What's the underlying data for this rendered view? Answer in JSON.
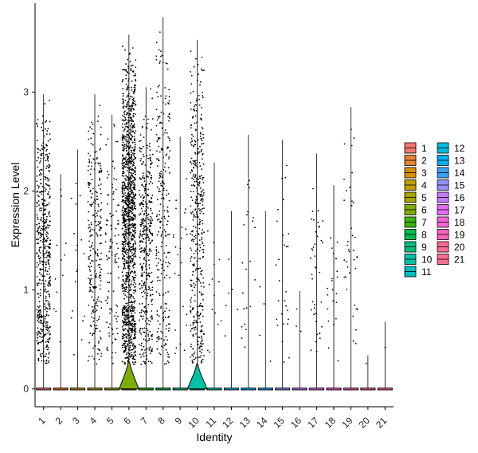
{
  "chart_data": {
    "type": "violin",
    "xlabel": "Identity",
    "ylabel": "Expression Level",
    "categories": [
      "1",
      "2",
      "3",
      "4",
      "5",
      "6",
      "7",
      "8",
      "9",
      "10",
      "11",
      "12",
      "13",
      "14",
      "15",
      "16",
      "17",
      "18",
      "19",
      "20",
      "21"
    ],
    "ylim": [
      -0.18,
      3.9
    ],
    "yticks": [
      0,
      1,
      2,
      3
    ],
    "violin_max": [
      2.98,
      2.17,
      2.42,
      2.98,
      2.77,
      3.58,
      3.05,
      3.76,
      2.55,
      3.53,
      2.29,
      1.8,
      2.57,
      1.8,
      2.52,
      0.99,
      2.38,
      2.06,
      2.85,
      0.34,
      0.68
    ],
    "scatter_points_approx": [
      520,
      12,
      18,
      260,
      110,
      1350,
      420,
      260,
      25,
      420,
      14,
      6,
      22,
      4,
      28,
      3,
      40,
      22,
      38,
      1,
      1
    ],
    "legend": {
      "placement": "right",
      "columns": [
        [
          "1",
          "2",
          "3",
          "4",
          "5",
          "6",
          "7",
          "8",
          "9",
          "10",
          "11"
        ],
        [
          "12",
          "13",
          "14",
          "15",
          "16",
          "17",
          "18",
          "19",
          "20",
          "21"
        ]
      ]
    },
    "colors": [
      "#F8766D",
      "#EA8331",
      "#D89000",
      "#C09B00",
      "#A3A500",
      "#7CAE00",
      "#39B600",
      "#00BB4E",
      "#00BF7D",
      "#00C1A3",
      "#00BFC4",
      "#00BAE0",
      "#00B0F6",
      "#35A2FF",
      "#9590FF",
      "#C77CFF",
      "#E76BF3",
      "#FA62DB",
      "#FF62BC",
      "#FF6C91",
      "#FF6C91"
    ]
  }
}
